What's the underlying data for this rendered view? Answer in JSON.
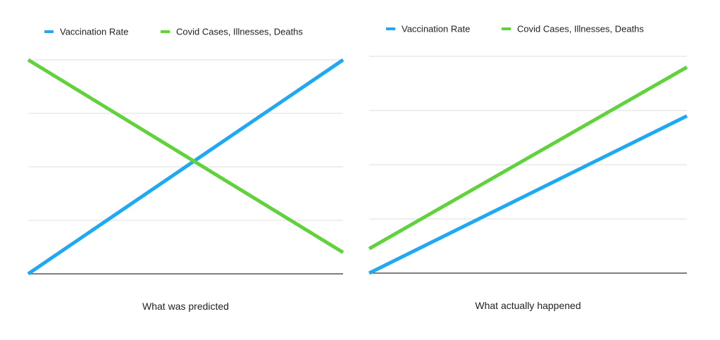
{
  "chart_data": [
    {
      "type": "line",
      "xlabel": "What was predicted",
      "ylabel": "",
      "title": "",
      "grid": true,
      "ylim": [
        0,
        4
      ],
      "x": [
        0,
        1
      ],
      "legend_position": "top",
      "series": [
        {
          "name": "Vaccination Rate",
          "color": "#1fa8f4",
          "values": [
            0,
            4
          ]
        },
        {
          "name": "Covid Cases, Illnesses, Deaths",
          "color": "#5fd23c",
          "values": [
            4,
            0.4
          ]
        }
      ]
    },
    {
      "type": "line",
      "xlabel": "What actually happened",
      "ylabel": "",
      "title": "",
      "grid": true,
      "ylim": [
        0,
        4
      ],
      "x": [
        0,
        1
      ],
      "legend_position": "top",
      "series": [
        {
          "name": "Vaccination Rate",
          "color": "#1fa8f4",
          "values": [
            0,
            2.9
          ]
        },
        {
          "name": "Covid Cases, Illnesses, Deaths",
          "color": "#5fd23c",
          "values": [
            0.45,
            3.8
          ]
        }
      ]
    }
  ]
}
